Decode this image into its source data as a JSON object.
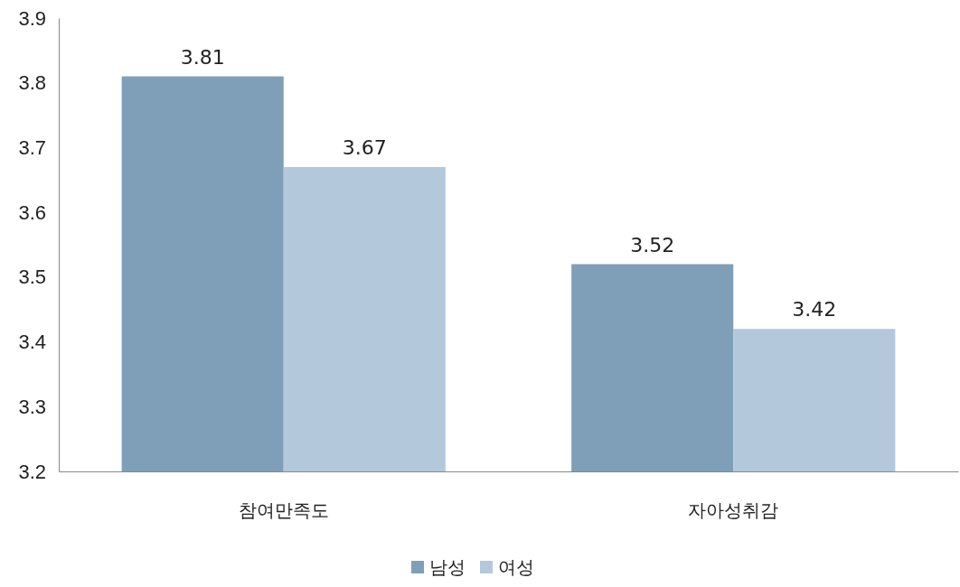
{
  "chart_data": {
    "type": "bar",
    "categories": [
      "참여만족도",
      "자아성취감"
    ],
    "series": [
      {
        "name": "남성",
        "color": "#7f9fb8",
        "values": [
          3.81,
          3.52
        ]
      },
      {
        "name": "여성",
        "color": "#b4c8dc",
        "values": [
          3.67,
          3.42
        ]
      }
    ],
    "ylim": [
      3.2,
      3.9
    ],
    "yticks": [
      3.2,
      3.3,
      3.4,
      3.5,
      3.6,
      3.7,
      3.8,
      3.9
    ],
    "grid": false,
    "legend": "bottom",
    "data_labels": true
  }
}
